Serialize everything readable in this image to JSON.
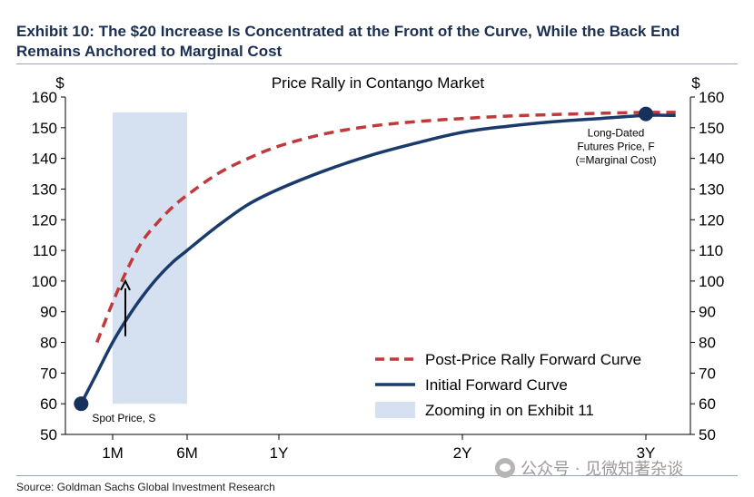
{
  "exhibit": {
    "title": "Exhibit 10: The $20 Increase Is Concentrated at the Front of the Curve, While the Back End Remains Anchored to Marginal Cost",
    "source": "Source: Goldman Sachs Global Investment Research"
  },
  "watermark": {
    "text": "公众号 · 见微知著杂谈"
  },
  "chart_data": {
    "type": "line",
    "title": "Price Rally in Contango Market",
    "ylabel_left": "$",
    "ylabel_right": "$",
    "ylim": [
      50,
      160
    ],
    "yticks": [
      50,
      60,
      70,
      80,
      90,
      100,
      110,
      120,
      130,
      140,
      150,
      160
    ],
    "x_ticks": [
      {
        "label": "1M",
        "months": 1
      },
      {
        "label": "6M",
        "months": 6
      },
      {
        "label": "1Y",
        "months": 12
      },
      {
        "label": "2Y",
        "months": 24
      },
      {
        "label": "3Y",
        "months": 36
      }
    ],
    "xlim_months": [
      -2,
      37.5
    ],
    "grid": false,
    "legend_position": "bottom-right",
    "series": [
      {
        "name": "Post-Price Rally Forward Curve",
        "style": "dashed",
        "color": "#c0393b",
        "points": [
          [
            0,
            80
          ],
          [
            1,
            93
          ],
          [
            2,
            104
          ],
          [
            3,
            113
          ],
          [
            4,
            119
          ],
          [
            5,
            124
          ],
          [
            6,
            128
          ],
          [
            8,
            135
          ],
          [
            10,
            140
          ],
          [
            12,
            144
          ],
          [
            15,
            148
          ],
          [
            18,
            150.5
          ],
          [
            21,
            152
          ],
          [
            24,
            153
          ],
          [
            27,
            153.8
          ],
          [
            30,
            154.3
          ],
          [
            33,
            154.7
          ],
          [
            36,
            155
          ],
          [
            37,
            155
          ]
        ]
      },
      {
        "name": "Initial Forward Curve",
        "style": "solid",
        "color": "#1a3a6b",
        "points": [
          [
            -1,
            60
          ],
          [
            0,
            70
          ],
          [
            1,
            80
          ],
          [
            2,
            88
          ],
          [
            3,
            95
          ],
          [
            4,
            101
          ],
          [
            5,
            106
          ],
          [
            6,
            110
          ],
          [
            8,
            118
          ],
          [
            10,
            125
          ],
          [
            12,
            130
          ],
          [
            15,
            136
          ],
          [
            18,
            141
          ],
          [
            21,
            145
          ],
          [
            24,
            148.5
          ],
          [
            27,
            150.5
          ],
          [
            30,
            152
          ],
          [
            33,
            153
          ],
          [
            36,
            154
          ],
          [
            37,
            154
          ]
        ]
      }
    ],
    "shaded_region": {
      "name": "Zooming in on Exhibit 11",
      "x_from_months": 1,
      "x_to_months": 6,
      "y_from": 60,
      "y_to": 155,
      "color": "#d5e1f0"
    },
    "markers": [
      {
        "x_months": -1,
        "y": 60,
        "label": "Spot Price, S"
      },
      {
        "x_months": 36,
        "y": 154.5,
        "label_lines": [
          "Long-Dated",
          "Futures Price, F",
          "(=Marginal Cost)"
        ]
      }
    ],
    "arrow": {
      "x_months": 1,
      "y_from": 82,
      "y_to": 100
    }
  }
}
